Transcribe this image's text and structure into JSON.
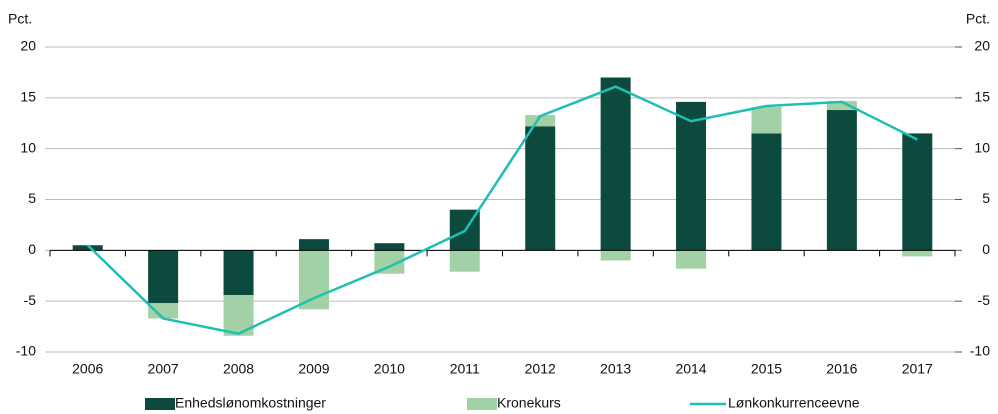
{
  "chart_data": {
    "type": "bar",
    "stacked": true,
    "ylabel": "Pct.",
    "y2label": "Pct.",
    "categories": [
      "2006",
      "2007",
      "2008",
      "2009",
      "2010",
      "2011",
      "2012",
      "2013",
      "2014",
      "2015",
      "2016",
      "2017"
    ],
    "series": [
      {
        "name": "Enhedslønomkostninger",
        "color": "#0b4a3c",
        "values": [
          0.5,
          -5.2,
          -4.4,
          1.1,
          0.7,
          4.0,
          12.2,
          17.0,
          14.6,
          11.5,
          13.8,
          11.5
        ]
      },
      {
        "name": "Kronekurs",
        "color": "#a2d1a6",
        "values": [
          0,
          -1.5,
          -4.0,
          -5.8,
          -2.3,
          -2.1,
          1.1,
          -1.0,
          -1.8,
          2.6,
          0.9,
          -0.6
        ]
      },
      {
        "name": "Lønkonkurrenceevne",
        "type": "line",
        "color": "#1fbfb3",
        "values": [
          0.5,
          -6.7,
          -8.2,
          -4.7,
          -1.6,
          1.9,
          13.2,
          16.1,
          12.7,
          14.2,
          14.6,
          10.9
        ]
      }
    ],
    "ylim": [
      -10,
      20
    ],
    "yticks": [
      -10,
      -5,
      0,
      5,
      10,
      15,
      20
    ],
    "y2lim": [
      -10,
      20
    ],
    "y2ticks": [
      -10,
      -5,
      0,
      5,
      10,
      15,
      20
    ],
    "grid": true,
    "legend": "bottom"
  }
}
